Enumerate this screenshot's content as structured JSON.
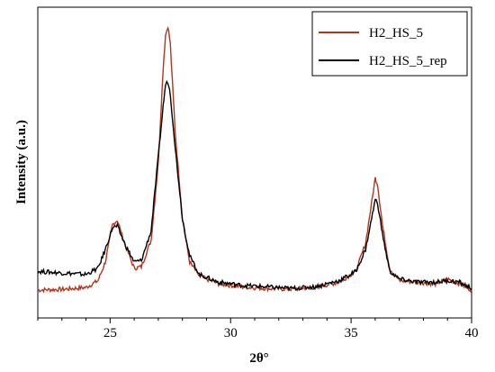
{
  "chart_data": {
    "type": "line",
    "title": "",
    "xlabel": "2θ°",
    "ylabel": "Intensity (a.u.)",
    "xlim": [
      22,
      40
    ],
    "ylim": [
      0,
      100
    ],
    "xticks": [
      25,
      30,
      35,
      40
    ],
    "xtick_labels": [
      "25",
      "30",
      "35",
      "40"
    ],
    "y_tick_labels": false,
    "grid": false,
    "legend_position": "top-right",
    "series": [
      {
        "name": "H2_HS_5",
        "color": "#b5341c",
        "points": [
          [
            22.0,
            9.0
          ],
          [
            23.0,
            9.2
          ],
          [
            24.0,
            9.8
          ],
          [
            24.5,
            12.0
          ],
          [
            24.8,
            18.0
          ],
          [
            25.1,
            30.0
          ],
          [
            25.3,
            31.5
          ],
          [
            25.6,
            24.0
          ],
          [
            26.0,
            16.0
          ],
          [
            26.3,
            16.5
          ],
          [
            26.7,
            25.0
          ],
          [
            27.0,
            50.0
          ],
          [
            27.2,
            80.0
          ],
          [
            27.3,
            91.0
          ],
          [
            27.4,
            94.0
          ],
          [
            27.5,
            88.0
          ],
          [
            27.7,
            60.0
          ],
          [
            28.0,
            32.0
          ],
          [
            28.3,
            18.0
          ],
          [
            28.7,
            13.5
          ],
          [
            29.5,
            11.0
          ],
          [
            30.5,
            10.0
          ],
          [
            31.5,
            9.5
          ],
          [
            32.5,
            9.3
          ],
          [
            33.5,
            9.8
          ],
          [
            34.5,
            11.5
          ],
          [
            35.2,
            15.0
          ],
          [
            35.6,
            24.0
          ],
          [
            35.85,
            37.0
          ],
          [
            36.0,
            45.0
          ],
          [
            36.1,
            43.0
          ],
          [
            36.3,
            30.0
          ],
          [
            36.6,
            16.0
          ],
          [
            37.0,
            12.0
          ],
          [
            37.8,
            11.5
          ],
          [
            38.5,
            11.0
          ],
          [
            39.0,
            12.5
          ],
          [
            39.5,
            11.0
          ],
          [
            40.0,
            9.0
          ]
        ]
      },
      {
        "name": "H2_HS_5_rep",
        "color": "#000000",
        "points": [
          [
            22.0,
            15.0
          ],
          [
            23.0,
            14.5
          ],
          [
            24.0,
            14.0
          ],
          [
            24.5,
            16.0
          ],
          [
            24.8,
            22.0
          ],
          [
            25.1,
            29.0
          ],
          [
            25.3,
            29.5
          ],
          [
            25.6,
            24.0
          ],
          [
            26.0,
            18.0
          ],
          [
            26.3,
            18.5
          ],
          [
            26.7,
            28.0
          ],
          [
            27.0,
            52.0
          ],
          [
            27.2,
            68.0
          ],
          [
            27.3,
            75.0
          ],
          [
            27.4,
            76.0
          ],
          [
            27.5,
            72.0
          ],
          [
            27.7,
            55.0
          ],
          [
            28.0,
            32.0
          ],
          [
            28.3,
            20.0
          ],
          [
            28.7,
            14.0
          ],
          [
            29.5,
            11.5
          ],
          [
            30.5,
            10.5
          ],
          [
            31.5,
            10.0
          ],
          [
            32.5,
            9.5
          ],
          [
            33.5,
            10.0
          ],
          [
            34.5,
            12.0
          ],
          [
            35.2,
            15.0
          ],
          [
            35.6,
            22.0
          ],
          [
            35.85,
            32.0
          ],
          [
            36.0,
            38.0
          ],
          [
            36.1,
            37.0
          ],
          [
            36.3,
            27.0
          ],
          [
            36.6,
            15.0
          ],
          [
            37.0,
            12.5
          ],
          [
            37.8,
            11.5
          ],
          [
            38.5,
            11.5
          ],
          [
            39.0,
            12.0
          ],
          [
            39.5,
            11.5
          ],
          [
            40.0,
            9.5
          ]
        ]
      }
    ]
  }
}
